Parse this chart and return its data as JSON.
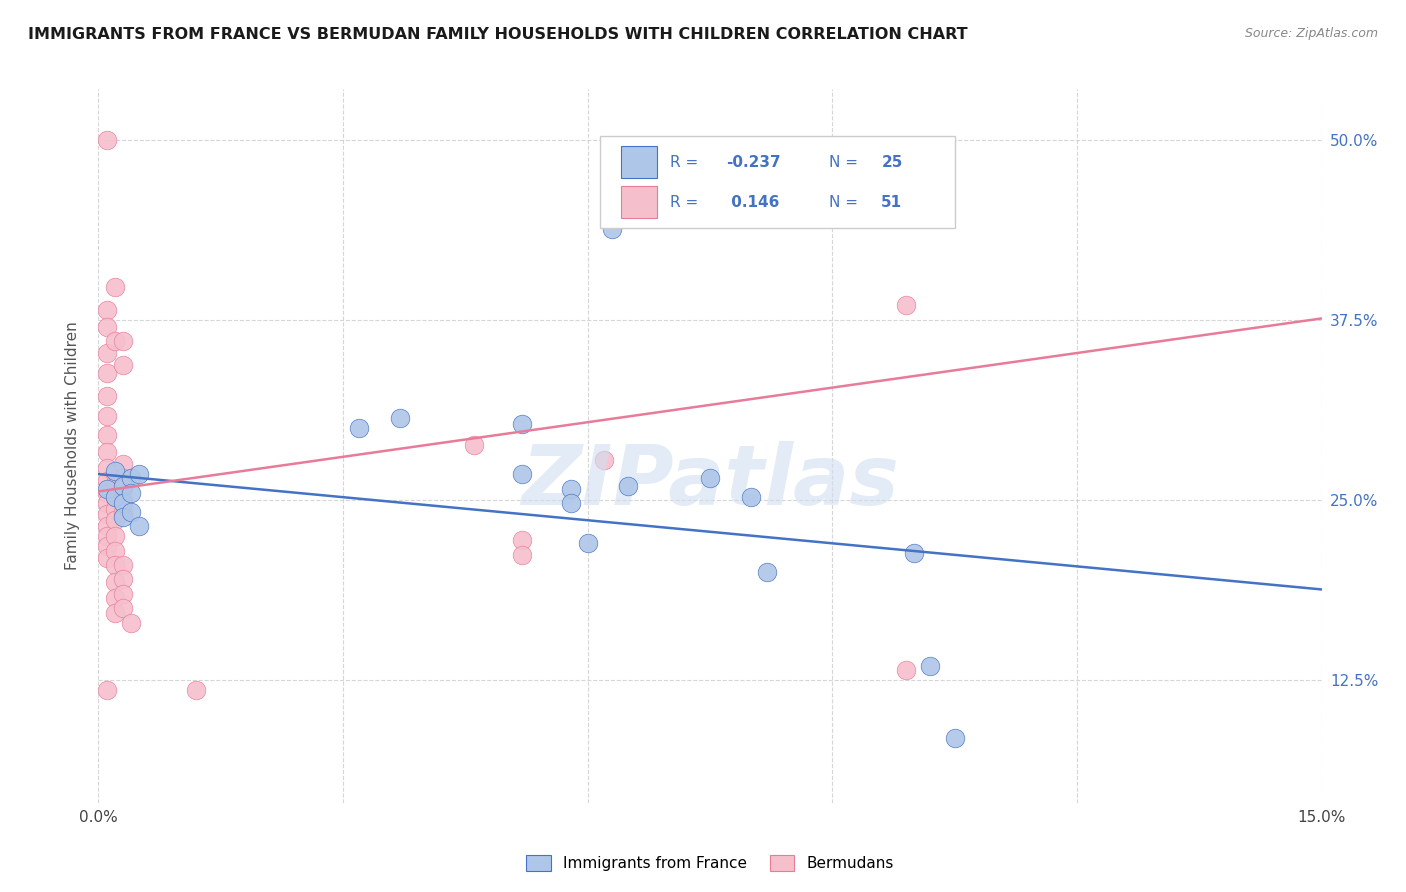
{
  "title": "IMMIGRANTS FROM FRANCE VS BERMUDAN FAMILY HOUSEHOLDS WITH CHILDREN CORRELATION CHART",
  "source": "Source: ZipAtlas.com",
  "ylabel": "Family Households with Children",
  "ytick_labels": [
    "12.5%",
    "25.0%",
    "37.5%",
    "50.0%"
  ],
  "ytick_values": [
    0.125,
    0.25,
    0.375,
    0.5
  ],
  "xmin": 0.0,
  "xmax": 0.15,
  "ymin": 0.04,
  "ymax": 0.535,
  "color_blue": "#aec6e8",
  "color_pink": "#f5bfcc",
  "line_color_blue": "#4472c4",
  "line_color_pink": "#e87b9a",
  "watermark_text": "ZIPatlas",
  "blue_points": [
    [
      0.001,
      0.258
    ],
    [
      0.002,
      0.27
    ],
    [
      0.002,
      0.252
    ],
    [
      0.003,
      0.26
    ],
    [
      0.003,
      0.248
    ],
    [
      0.003,
      0.238
    ],
    [
      0.004,
      0.265
    ],
    [
      0.004,
      0.255
    ],
    [
      0.004,
      0.242
    ],
    [
      0.005,
      0.232
    ],
    [
      0.005,
      0.268
    ],
    [
      0.032,
      0.3
    ],
    [
      0.037,
      0.307
    ],
    [
      0.052,
      0.303
    ],
    [
      0.052,
      0.268
    ],
    [
      0.058,
      0.258
    ],
    [
      0.058,
      0.248
    ],
    [
      0.06,
      0.22
    ],
    [
      0.063,
      0.438
    ],
    [
      0.065,
      0.26
    ],
    [
      0.075,
      0.265
    ],
    [
      0.08,
      0.252
    ],
    [
      0.082,
      0.2
    ],
    [
      0.1,
      0.213
    ],
    [
      0.102,
      0.135
    ],
    [
      0.105,
      0.085
    ]
  ],
  "pink_points": [
    [
      0.001,
      0.5
    ],
    [
      0.001,
      0.382
    ],
    [
      0.001,
      0.37
    ],
    [
      0.001,
      0.352
    ],
    [
      0.001,
      0.338
    ],
    [
      0.001,
      0.322
    ],
    [
      0.001,
      0.308
    ],
    [
      0.001,
      0.295
    ],
    [
      0.001,
      0.283
    ],
    [
      0.001,
      0.272
    ],
    [
      0.001,
      0.263
    ],
    [
      0.001,
      0.255
    ],
    [
      0.001,
      0.248
    ],
    [
      0.001,
      0.24
    ],
    [
      0.001,
      0.232
    ],
    [
      0.001,
      0.225
    ],
    [
      0.001,
      0.218
    ],
    [
      0.001,
      0.21
    ],
    [
      0.002,
      0.398
    ],
    [
      0.002,
      0.36
    ],
    [
      0.002,
      0.268
    ],
    [
      0.002,
      0.26
    ],
    [
      0.002,
      0.252
    ],
    [
      0.002,
      0.244
    ],
    [
      0.002,
      0.236
    ],
    [
      0.002,
      0.225
    ],
    [
      0.002,
      0.215
    ],
    [
      0.002,
      0.205
    ],
    [
      0.002,
      0.193
    ],
    [
      0.002,
      0.182
    ],
    [
      0.002,
      0.172
    ],
    [
      0.003,
      0.36
    ],
    [
      0.003,
      0.344
    ],
    [
      0.003,
      0.275
    ],
    [
      0.003,
      0.265
    ],
    [
      0.003,
      0.258
    ],
    [
      0.003,
      0.25
    ],
    [
      0.003,
      0.242
    ],
    [
      0.003,
      0.205
    ],
    [
      0.003,
      0.195
    ],
    [
      0.003,
      0.185
    ],
    [
      0.003,
      0.175
    ],
    [
      0.004,
      0.165
    ],
    [
      0.046,
      0.288
    ],
    [
      0.052,
      0.222
    ],
    [
      0.052,
      0.212
    ],
    [
      0.062,
      0.278
    ],
    [
      0.099,
      0.385
    ],
    [
      0.099,
      0.132
    ],
    [
      0.001,
      0.118
    ],
    [
      0.012,
      0.118
    ]
  ],
  "blue_line": {
    "x0": 0.0,
    "y0": 0.268,
    "x1": 0.15,
    "y1": 0.188
  },
  "pink_line": {
    "x0": 0.0,
    "y0": 0.256,
    "x1": 0.15,
    "y1": 0.376
  }
}
